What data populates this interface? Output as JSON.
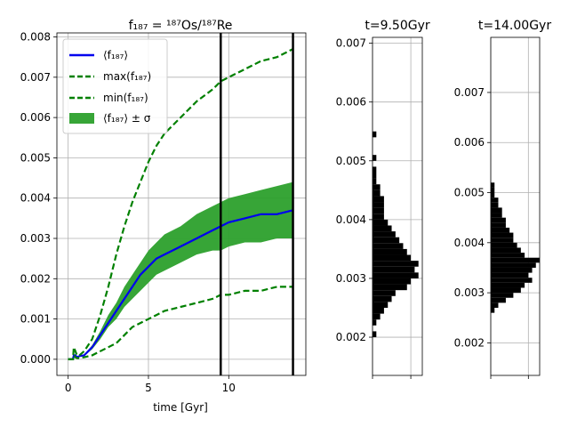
{
  "figure": {
    "main_title": "f₁₈₇ = ¹⁸⁷Os/¹⁸⁷Re",
    "main_xlabel": "time [Gyr]",
    "hist1_title": "t=9.50Gyr",
    "hist2_title": "t=14.00Gyr"
  },
  "legend": {
    "mean": "⟨f₁₈₇⟩",
    "max": "max(f₁₈₇)",
    "min": "min(f₁₈₇)",
    "band": "⟨f₁₈₇⟩ ± σ"
  },
  "colors": {
    "mean": "#0000ee",
    "extremes": "#008000",
    "band": "#2ca02c",
    "vline": "#000000",
    "hist": "#000000"
  },
  "chart_data": [
    {
      "type": "line",
      "title": "f₁₈₇ = ¹⁸⁷Os/¹⁸⁷Re",
      "xlabel": "time [Gyr]",
      "ylabel": "",
      "xlim": [
        -0.7,
        14.8
      ],
      "ylim": [
        -0.0004,
        0.0081
      ],
      "xticks": [
        0,
        5,
        10
      ],
      "xtick_labels": [
        "0",
        "5",
        "10"
      ],
      "yticks": [
        0.0,
        0.001,
        0.002,
        0.003,
        0.004,
        0.005,
        0.006,
        0.007,
        0.008
      ],
      "ytick_labels": [
        "0.000",
        "0.001",
        "0.002",
        "0.003",
        "0.004",
        "0.005",
        "0.006",
        "0.007",
        "0.008"
      ],
      "grid": true,
      "legend_position": "top-left",
      "vertical_lines": [
        9.5,
        14.0
      ],
      "x": [
        0,
        0.3,
        0.35,
        0.45,
        0.55,
        0.7,
        1.0,
        1.5,
        2,
        2.5,
        3,
        3.5,
        4,
        4.5,
        5,
        5.5,
        6,
        7,
        8,
        9,
        9.5,
        10,
        11,
        12,
        13,
        14
      ],
      "series": [
        {
          "name": "⟨f₁₈₇⟩",
          "style": "solid",
          "values": [
            0,
            0,
            0.0001,
            0.0001,
            5e-05,
            8e-05,
            0.0001,
            0.0003,
            0.0006,
            0.0009,
            0.0012,
            0.0015,
            0.0018,
            0.0021,
            0.0023,
            0.0025,
            0.0026,
            0.0028,
            0.003,
            0.0032,
            0.0033,
            0.0034,
            0.0035,
            0.0036,
            0.0036,
            0.0037
          ]
        },
        {
          "name": "max(f₁₈₇)",
          "style": "dashed",
          "values": [
            0,
            0,
            0.0003,
            0.0002,
            0.0001,
            0.0001,
            0.0002,
            0.0005,
            0.0011,
            0.0018,
            0.0026,
            0.0033,
            0.0039,
            0.0044,
            0.0049,
            0.0053,
            0.0056,
            0.006,
            0.0064,
            0.0067,
            0.0069,
            0.007,
            0.0072,
            0.0074,
            0.0075,
            0.0077
          ]
        },
        {
          "name": "min(f₁₈₇)",
          "style": "dashed",
          "values": [
            0,
            0,
            0.0001,
            5e-05,
            3e-05,
            3e-05,
            5e-05,
            0.0001,
            0.0002,
            0.0003,
            0.0004,
            0.0006,
            0.0008,
            0.0009,
            0.001,
            0.0011,
            0.0012,
            0.0013,
            0.0014,
            0.0015,
            0.0016,
            0.0016,
            0.0017,
            0.0017,
            0.0018,
            0.0018
          ]
        }
      ],
      "band": {
        "name": "⟨f₁₈₇⟩ ± σ",
        "upper": [
          0,
          0,
          0.0001,
          0.0001,
          7e-05,
          0.0001,
          0.00012,
          0.00035,
          0.0007,
          0.0011,
          0.0014,
          0.0018,
          0.0021,
          0.0024,
          0.0027,
          0.0029,
          0.0031,
          0.0033,
          0.0036,
          0.0038,
          0.0039,
          0.004,
          0.0041,
          0.0042,
          0.0043,
          0.0044
        ],
        "lower": [
          0,
          0,
          8e-05,
          8e-05,
          4e-05,
          6e-05,
          8e-05,
          0.00025,
          0.0005,
          0.0008,
          0.001,
          0.0013,
          0.0015,
          0.0017,
          0.0019,
          0.0021,
          0.0022,
          0.0024,
          0.0026,
          0.0027,
          0.0027,
          0.0028,
          0.0029,
          0.0029,
          0.003,
          0.003
        ]
      }
    },
    {
      "type": "bar",
      "orientation": "horizontal",
      "title": "t=9.50Gyr",
      "ylim": [
        0.00135,
        0.0071
      ],
      "yticks": [
        0.002,
        0.003,
        0.004,
        0.005,
        0.006,
        0.007
      ],
      "ytick_labels": [
        "0.002",
        "0.003",
        "0.004",
        "0.005",
        "0.006",
        "0.007"
      ],
      "xlim": [
        0,
        13
      ],
      "grid": true,
      "bin_width": 0.0001,
      "bins": [
        {
          "y0": 0.002,
          "count": 1
        },
        {
          "y0": 0.0022,
          "count": 1
        },
        {
          "y0": 0.0023,
          "count": 2
        },
        {
          "y0": 0.0024,
          "count": 3
        },
        {
          "y0": 0.0025,
          "count": 4
        },
        {
          "y0": 0.0026,
          "count": 5
        },
        {
          "y0": 0.0027,
          "count": 6
        },
        {
          "y0": 0.0028,
          "count": 9
        },
        {
          "y0": 0.0029,
          "count": 10
        },
        {
          "y0": 0.003,
          "count": 12
        },
        {
          "y0": 0.0031,
          "count": 11
        },
        {
          "y0": 0.0032,
          "count": 12
        },
        {
          "y0": 0.0033,
          "count": 10
        },
        {
          "y0": 0.0034,
          "count": 9
        },
        {
          "y0": 0.0035,
          "count": 8
        },
        {
          "y0": 0.0036,
          "count": 7
        },
        {
          "y0": 0.0037,
          "count": 6
        },
        {
          "y0": 0.0038,
          "count": 5
        },
        {
          "y0": 0.0039,
          "count": 4
        },
        {
          "y0": 0.004,
          "count": 3
        },
        {
          "y0": 0.0041,
          "count": 3
        },
        {
          "y0": 0.0042,
          "count": 3
        },
        {
          "y0": 0.0043,
          "count": 3
        },
        {
          "y0": 0.0044,
          "count": 2
        },
        {
          "y0": 0.0045,
          "count": 2
        },
        {
          "y0": 0.0046,
          "count": 1
        },
        {
          "y0": 0.0047,
          "count": 1
        },
        {
          "y0": 0.0048,
          "count": 1
        },
        {
          "y0": 0.005,
          "count": 1
        },
        {
          "y0": 0.0054,
          "count": 1
        }
      ]
    },
    {
      "type": "bar",
      "orientation": "horizontal",
      "title": "t=14.00Gyr",
      "ylim": [
        0.00135,
        0.0081
      ],
      "yticks": [
        0.002,
        0.003,
        0.004,
        0.005,
        0.006,
        0.007
      ],
      "ytick_labels": [
        "0.002",
        "0.003",
        "0.004",
        "0.005",
        "0.006",
        "0.007"
      ],
      "xlim": [
        0,
        13
      ],
      "grid": true,
      "bin_width": 0.0001,
      "bins": [
        {
          "y0": 0.0026,
          "count": 1
        },
        {
          "y0": 0.0027,
          "count": 2
        },
        {
          "y0": 0.0028,
          "count": 4
        },
        {
          "y0": 0.0029,
          "count": 6
        },
        {
          "y0": 0.003,
          "count": 8
        },
        {
          "y0": 0.0031,
          "count": 9
        },
        {
          "y0": 0.0032,
          "count": 11
        },
        {
          "y0": 0.0033,
          "count": 10
        },
        {
          "y0": 0.0034,
          "count": 11
        },
        {
          "y0": 0.0035,
          "count": 12
        },
        {
          "y0": 0.0036,
          "count": 13
        },
        {
          "y0": 0.0037,
          "count": 9
        },
        {
          "y0": 0.0038,
          "count": 8
        },
        {
          "y0": 0.0039,
          "count": 7
        },
        {
          "y0": 0.004,
          "count": 6
        },
        {
          "y0": 0.0041,
          "count": 6
        },
        {
          "y0": 0.0042,
          "count": 5
        },
        {
          "y0": 0.0043,
          "count": 4
        },
        {
          "y0": 0.0044,
          "count": 4
        },
        {
          "y0": 0.0045,
          "count": 3
        },
        {
          "y0": 0.0046,
          "count": 3
        },
        {
          "y0": 0.0047,
          "count": 2
        },
        {
          "y0": 0.0048,
          "count": 2
        },
        {
          "y0": 0.0049,
          "count": 1
        },
        {
          "y0": 0.005,
          "count": 1
        },
        {
          "y0": 0.0051,
          "count": 1
        }
      ]
    }
  ]
}
